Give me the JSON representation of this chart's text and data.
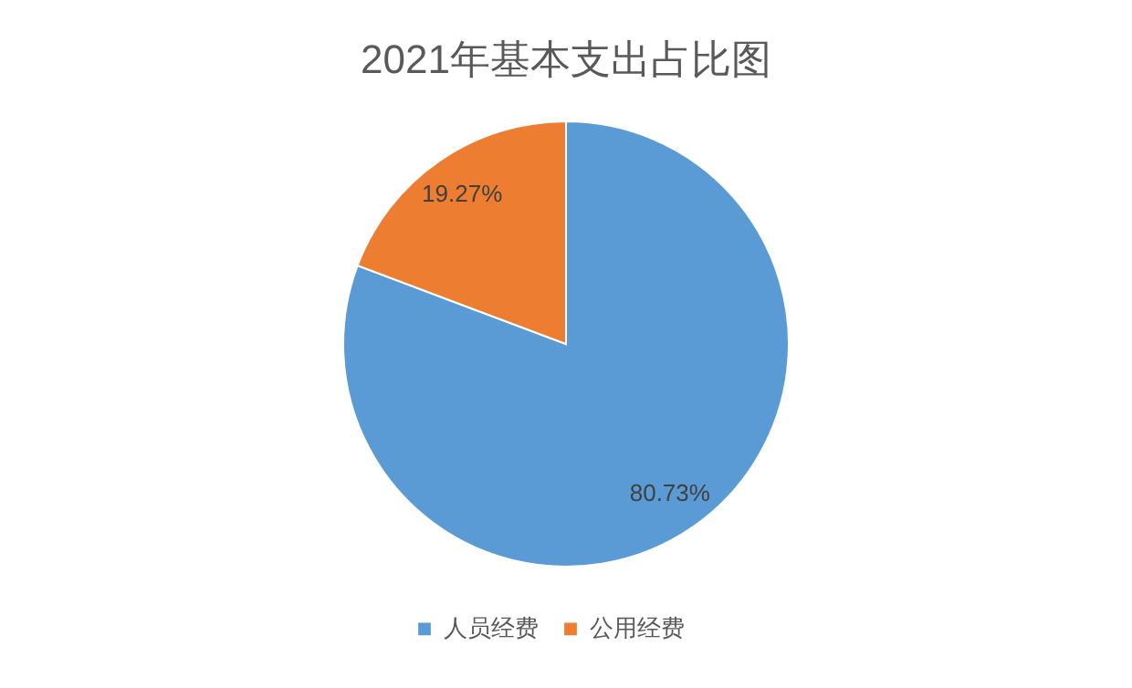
{
  "chart_data": {
    "type": "pie",
    "title": "2021年基本支出占比图",
    "categories": [
      "人员经费",
      "公用经费"
    ],
    "values": [
      80.73,
      19.27
    ],
    "colors": [
      "#5b9bd5",
      "#ed7d31"
    ],
    "value_labels": [
      "80.73%",
      "19.27%"
    ],
    "legend": "bottom"
  }
}
